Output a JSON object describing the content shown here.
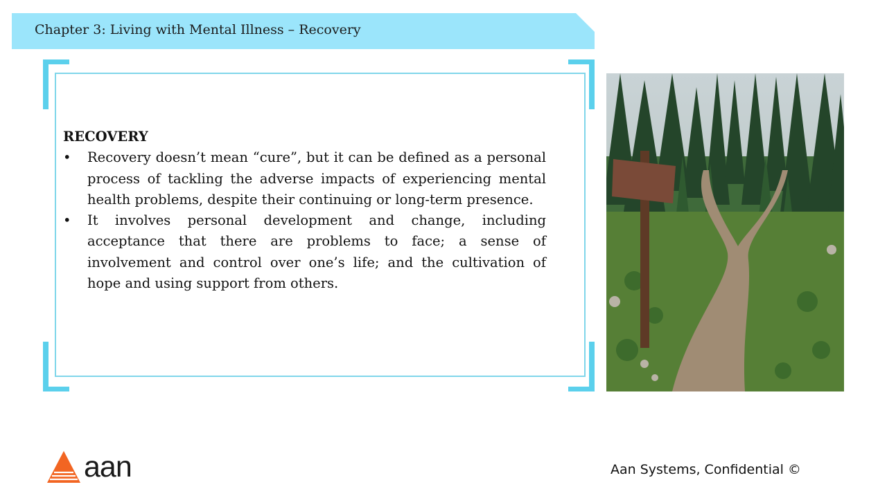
{
  "header": {
    "title": "Chapter 3: Living with Mental Illness – Recovery"
  },
  "content": {
    "heading": "RECOVERY",
    "bullets": [
      "Recovery doesn’t mean “cure”, but it can be defined as a personal process of tackling the adverse impacts of experiencing mental health problems, despite their continuing or long-term presence.",
      "It involves personal development and change, including acceptance that there are problems to face; a sense of involvement and control over one’s life; and the cultivation of hope and using support from others."
    ],
    "bullet_symbol": "•"
  },
  "image": {
    "icon": "forest-trail-fork-signpost-photo"
  },
  "footer": {
    "logo_text": "aan",
    "note": "Aan Systems, Confidential ©"
  },
  "colors": {
    "banner": "#9be5fb",
    "frame_accent": "#5bd0ec",
    "inner_border": "#7fd6ea",
    "logo_orange": "#f26522"
  }
}
